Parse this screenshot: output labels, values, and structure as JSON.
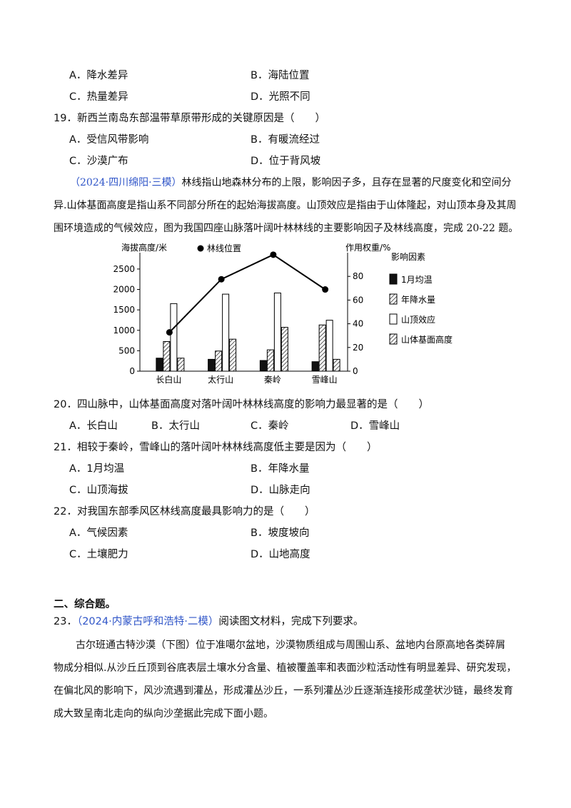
{
  "q18_options": {
    "A": "A．降水差异",
    "B": "B．海陆位置",
    "C": "C．热量差异",
    "D": "D．光照不同"
  },
  "q19": {
    "stem": "19．新西兰南岛东部温带草原带形成的关键原因是（　　）",
    "A": "A．受信风带影响",
    "B": "B．有暖流经过",
    "C": "C．沙漠广布",
    "D": "D．位于背风坡"
  },
  "passage": {
    "source": "（2024·四川绵阳·三模）",
    "line1": "林线指山地森林分布的上限，影响因子多，且存在显著的尺度变化和空间分",
    "line2": "异.山体基面高度是指山系不同部分所在的起始海拔高度。山顶效应是指由于山体隆起，对山顶本身及其周",
    "line3": "围环境造成的气候效应，图为我国四座山脉落叶阔叶林林线的主要影响因子及林线高度，完成 20-22 题。"
  },
  "chart_data": {
    "type": "bar",
    "ylabel_left": "海拔高度/米",
    "ylabel_right": "作用权重/%",
    "left_ticks": [
      "0",
      "500",
      "1000",
      "1500",
      "2000",
      "2500"
    ],
    "right_ticks": [
      "0",
      "20",
      "40",
      "60",
      "80"
    ],
    "ylim_left": [
      0,
      2900
    ],
    "ylim_right": [
      0,
      100
    ],
    "categories": [
      "长白山",
      "太行山",
      "秦岭",
      "雪峰山"
    ],
    "legend_title": "影响因素",
    "line_series": {
      "name": "林线位置",
      "axis": "left",
      "values": [
        950,
        2250,
        2850,
        2000
      ]
    },
    "series": [
      {
        "name": "1月均温",
        "axis": "right",
        "pattern": "solid",
        "values": [
          11,
          10,
          9,
          8
        ]
      },
      {
        "name": "年降水量",
        "axis": "right",
        "pattern": "hatch",
        "values": [
          25,
          17,
          18,
          39
        ]
      },
      {
        "name": "山顶效应",
        "axis": "right",
        "pattern": "empty",
        "values": [
          57,
          65,
          66,
          43
        ]
      },
      {
        "name": "山体基面高度",
        "axis": "right",
        "pattern": "hatch",
        "values": [
          11,
          27,
          37,
          10
        ]
      }
    ],
    "colors": {
      "solid": "#111111",
      "hatch": "#333333",
      "empty": "#ffffff"
    }
  },
  "q20": {
    "stem": "20．四山脉中，山体基面高度对落叶阔叶林林线高度的影响力最显著的是（　　）",
    "A": "A．长白山",
    "B": "B．太行山",
    "C": "C．秦岭",
    "D": "D．雪峰山"
  },
  "q21": {
    "stem": "21．相较于秦岭，雪峰山的落叶阔叶林林线高度低主要是因为（　　）",
    "A": "A．1月均温",
    "B": "B．年降水量",
    "C": "C．山顶海拔",
    "D": "D．山脉走向"
  },
  "q22": {
    "stem": "22．对我国东部季风区林线高度最具影响力的是（　　）",
    "A": "A．气候因素",
    "B": "B．坡度坡向",
    "C": "C．土壤肥力",
    "D": "D．山地高度"
  },
  "section2": {
    "title": "二、综合题。"
  },
  "q23": {
    "number": "23．",
    "source": "（2024·内蒙古呼和浩特·二模）",
    "instruction": "阅读图文材料，完成下列要求。",
    "line1": "古尔班通古特沙漠（下图）位于准噶尔盆地，沙漠物质组成与周围山系、盆地内台原高地各类碎屑",
    "line2": "物成分相似.从沙丘丘顶到谷底表层土壤水分含量、植被覆盖率和表面沙粒活动性有明显差异、研究发现，",
    "line3": "在偏北风的影响下，风沙流遇到灌丛，形成灌丛沙丘，一系列灌丛沙丘逐渐连接形成垄状沙链，最终发育",
    "line4": "成大致呈南北走向的纵向沙垄据此完成下面小题。"
  }
}
